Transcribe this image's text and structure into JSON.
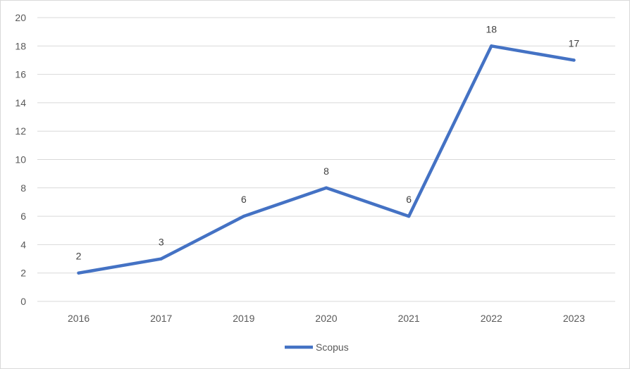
{
  "chart_data": {
    "type": "line",
    "categories": [
      "2016",
      "2017",
      "2019",
      "2020",
      "2021",
      "2022",
      "2023"
    ],
    "series": [
      {
        "name": "Scopus",
        "values": [
          2,
          3,
          6,
          8,
          6,
          18,
          17
        ],
        "color": "#4472C4"
      }
    ],
    "ylim": [
      0,
      20
    ],
    "yticks": [
      0,
      2,
      4,
      6,
      8,
      10,
      12,
      14,
      16,
      18,
      20
    ],
    "data_labels": true,
    "grid": true,
    "legend_position": "bottom",
    "gridline_color": "#d9d9d9"
  }
}
